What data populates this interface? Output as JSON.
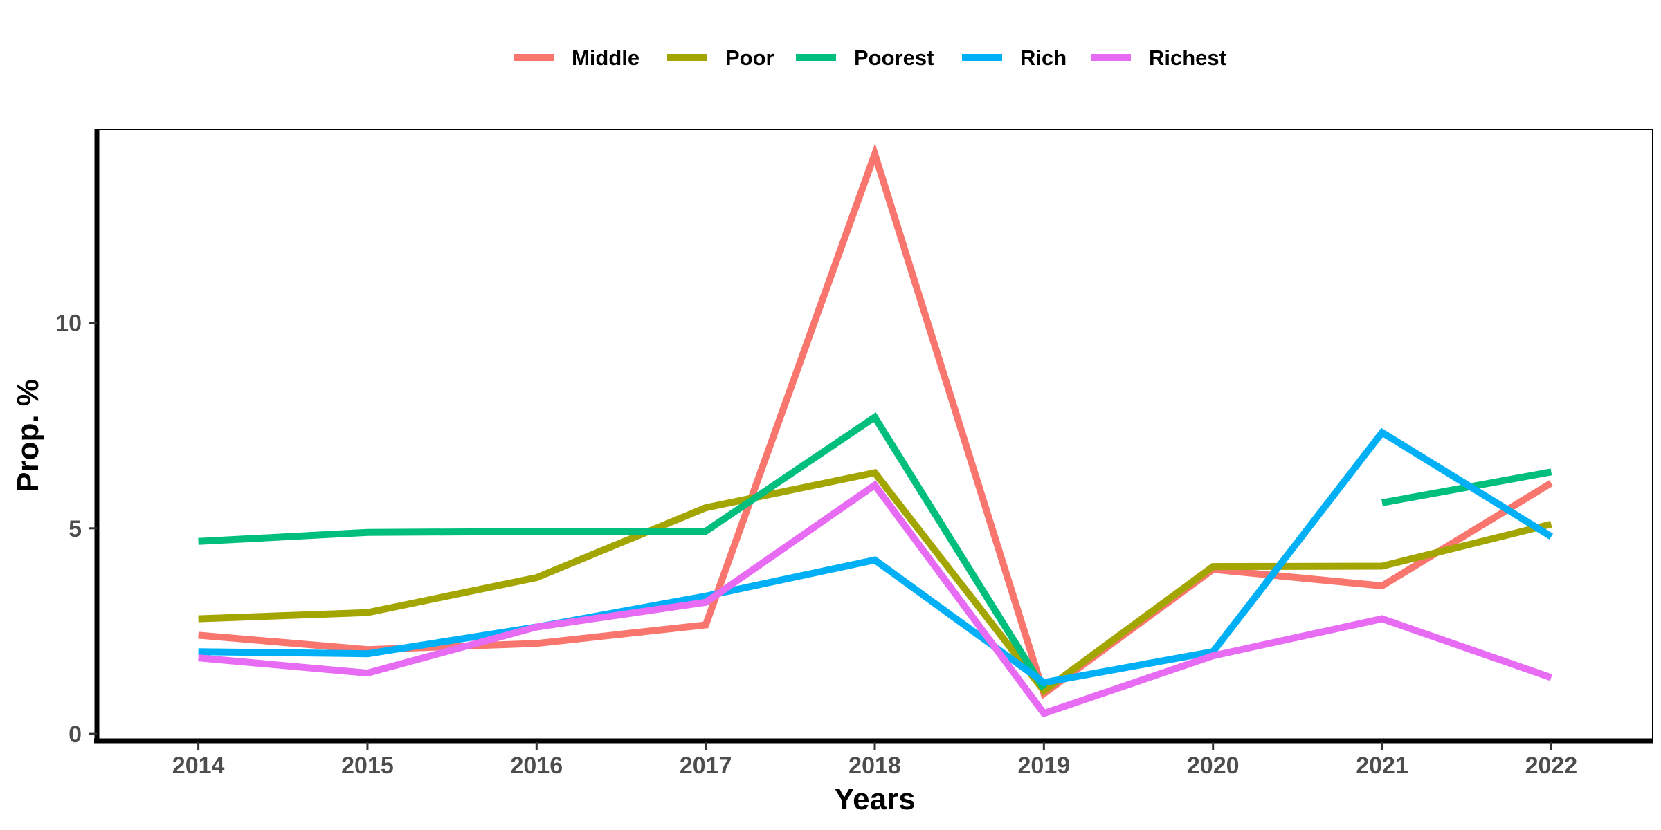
{
  "chart_data": {
    "type": "line",
    "title": "",
    "xlabel": "Years",
    "ylabel": "Prop. %",
    "x": [
      2014,
      2015,
      2016,
      2017,
      2018,
      2019,
      2020,
      2021,
      2022
    ],
    "x_ticks": [
      "2014",
      "2015",
      "2016",
      "2017",
      "2018",
      "2019",
      "2020",
      "2021",
      "2022"
    ],
    "y_ticks": [
      0,
      5,
      10
    ],
    "y_tick_labels": [
      "0",
      "5",
      "10"
    ],
    "ylim": [
      -0.2,
      14.7
    ],
    "xlim": [
      2013.4,
      2022.6
    ],
    "legend_position": "top",
    "grid": false,
    "series": [
      {
        "name": "Middle",
        "color": "#F8766D",
        "values": [
          2.4,
          2.05,
          2.2,
          2.65,
          14.1,
          0.98,
          4.0,
          3.6,
          6.1
        ]
      },
      {
        "name": "Poor",
        "color": "#A3A500",
        "values": [
          2.8,
          2.95,
          3.8,
          5.5,
          6.35,
          1.05,
          4.07,
          4.08,
          5.1
        ]
      },
      {
        "name": "Poorest",
        "color": "#00BF7D",
        "values": [
          4.68,
          4.9,
          4.92,
          4.93,
          7.7,
          1.1,
          null,
          5.62,
          6.37
        ]
      },
      {
        "name": "Rich",
        "color": "#00B0F6",
        "values": [
          2.0,
          1.95,
          2.6,
          3.35,
          4.23,
          1.25,
          2.0,
          7.33,
          4.8
        ]
      },
      {
        "name": "Richest",
        "color": "#E76BF3",
        "values": [
          1.85,
          1.48,
          2.6,
          3.2,
          6.05,
          0.5,
          1.9,
          2.8,
          1.37
        ]
      }
    ]
  }
}
